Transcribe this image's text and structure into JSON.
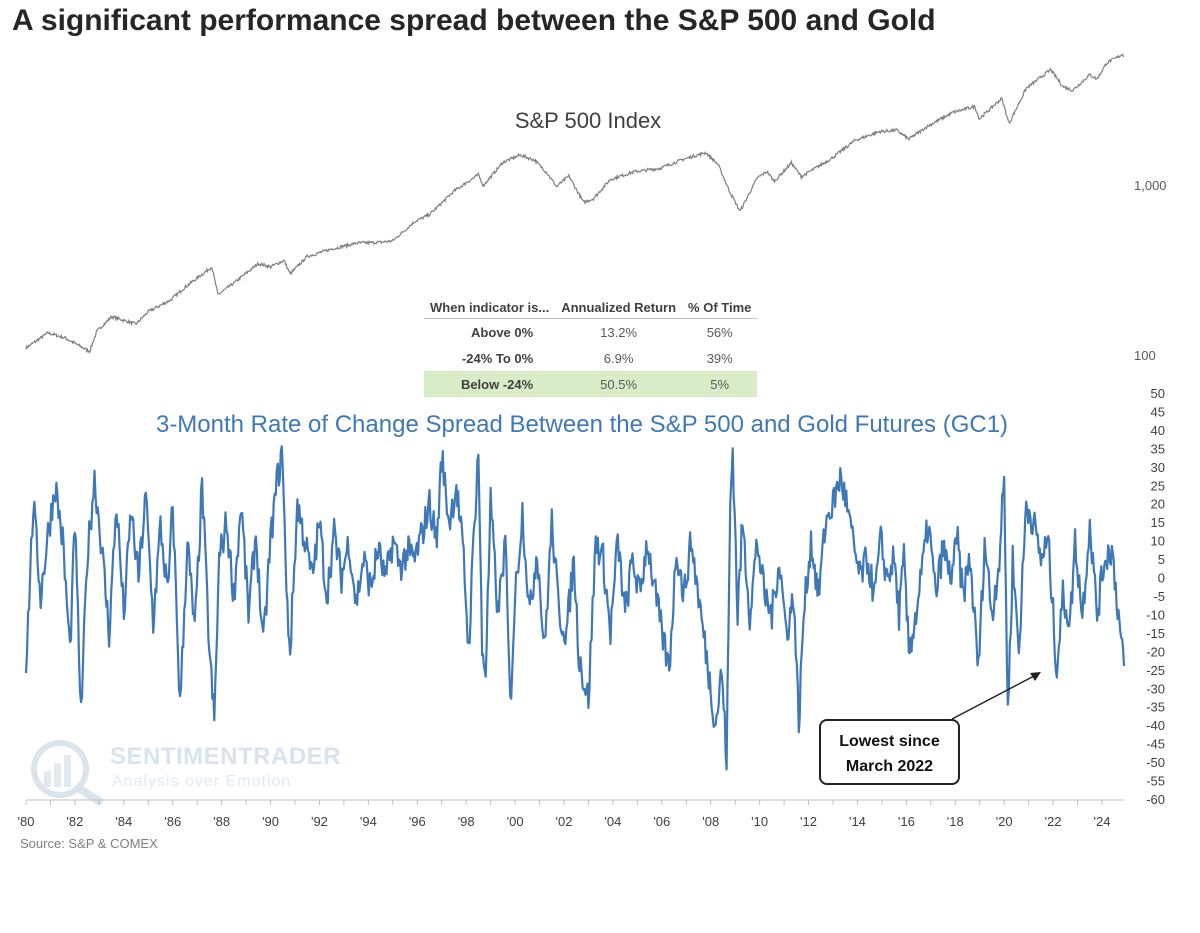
{
  "title": "A significant performance spread between the S&P 500 and Gold",
  "source": "Source: S&P & COMEX",
  "watermark": {
    "brand": "SENTIMENTRADER",
    "tagline": "Analysis over Emotion"
  },
  "annotation": {
    "line1": "Lowest since",
    "line2": "March 2022"
  },
  "stats_table": {
    "headers": [
      "When indicator is...",
      "Annualized Return",
      "% Of Time"
    ],
    "rows": [
      {
        "label": "Above 0%",
        "annualized_return": "13.2%",
        "pct_of_time": "56%"
      },
      {
        "label": "-24% To 0%",
        "annualized_return": "6.9%",
        "pct_of_time": "39%"
      },
      {
        "label": "Below -24%",
        "annualized_return": "50.5%",
        "pct_of_time": "5%"
      }
    ]
  },
  "colors": {
    "sp500_line": "#7f7f7f",
    "spread_line": "#3f78b6",
    "spread_title": "#3f78b6",
    "highlight_row": "#d9ecc8"
  },
  "chart_data": [
    {
      "type": "line",
      "title": "S&P 500 Index",
      "y_scale": "log",
      "y_ticks": [
        100,
        1000
      ],
      "y_tick_labels": [
        "100",
        "1,000"
      ],
      "ylim": [
        60,
        6500
      ],
      "xlim": [
        1980,
        2024.9
      ],
      "series": [
        {
          "points": [
            [
              1980.0,
              110
            ],
            [
              1980.9,
              135
            ],
            [
              1981.6,
              126
            ],
            [
              1982.6,
              105
            ],
            [
              1982.9,
              138
            ],
            [
              1983.5,
              168
            ],
            [
              1984.5,
              152
            ],
            [
              1985.0,
              180
            ],
            [
              1985.9,
              210
            ],
            [
              1986.5,
              250
            ],
            [
              1987.6,
              330
            ],
            [
              1987.85,
              226
            ],
            [
              1988.5,
              265
            ],
            [
              1989.5,
              345
            ],
            [
              1990.0,
              330
            ],
            [
              1990.55,
              360
            ],
            [
              1990.8,
              300
            ],
            [
              1991.5,
              380
            ],
            [
              1992.5,
              420
            ],
            [
              1993.5,
              455
            ],
            [
              1994.5,
              460
            ],
            [
              1995.0,
              470
            ],
            [
              1995.9,
              610
            ],
            [
              1996.5,
              670
            ],
            [
              1997.5,
              920
            ],
            [
              1998.5,
              1150
            ],
            [
              1998.7,
              990
            ],
            [
              1999.5,
              1360
            ],
            [
              2000.2,
              1500
            ],
            [
              2000.8,
              1400
            ],
            [
              2001.3,
              1180
            ],
            [
              2001.7,
              980
            ],
            [
              2002.2,
              1130
            ],
            [
              2002.8,
              790
            ],
            [
              2003.2,
              830
            ],
            [
              2003.9,
              1080
            ],
            [
              2004.9,
              1200
            ],
            [
              2005.9,
              1250
            ],
            [
              2006.9,
              1420
            ],
            [
              2007.8,
              1550
            ],
            [
              2008.3,
              1320
            ],
            [
              2008.8,
              900
            ],
            [
              2009.2,
              700
            ],
            [
              2009.9,
              1100
            ],
            [
              2010.3,
              1200
            ],
            [
              2010.6,
              1050
            ],
            [
              2011.3,
              1350
            ],
            [
              2011.7,
              1120
            ],
            [
              2012.9,
              1420
            ],
            [
              2013.9,
              1830
            ],
            [
              2014.9,
              2060
            ],
            [
              2015.6,
              2100
            ],
            [
              2016.1,
              1860
            ],
            [
              2016.9,
              2230
            ],
            [
              2017.9,
              2670
            ],
            [
              2018.8,
              2900
            ],
            [
              2018.98,
              2450
            ],
            [
              2019.9,
              3230
            ],
            [
              2020.2,
              2300
            ],
            [
              2020.9,
              3700
            ],
            [
              2021.9,
              4770
            ],
            [
              2022.4,
              3800
            ],
            [
              2022.8,
              3600
            ],
            [
              2023.5,
              4450
            ],
            [
              2023.8,
              4200
            ],
            [
              2024.2,
              5250
            ],
            [
              2024.6,
              5600
            ],
            [
              2024.85,
              5900
            ],
            [
              2024.9,
              5700
            ]
          ]
        }
      ]
    },
    {
      "type": "line",
      "title": "3-Month Rate of Change Spread Between the S&P 500 and Gold Futures (GC1)",
      "ylim": [
        -60,
        50
      ],
      "y_ticks": [
        50,
        45,
        40,
        35,
        30,
        25,
        20,
        15,
        10,
        5,
        0,
        -5,
        -10,
        -15,
        -20,
        -25,
        -30,
        -35,
        -40,
        -45,
        -50,
        -55,
        -60
      ],
      "x_tick_labels": [
        "'80",
        "'82",
        "'84",
        "'86",
        "'88",
        "'90",
        "'92",
        "'94",
        "'96",
        "'98",
        "'00",
        "'02",
        "'04",
        "'06",
        "'08",
        "'10",
        "'12",
        "'14",
        "'16",
        "'18",
        "'20",
        "'22",
        "'24"
      ],
      "x_tick_years": [
        1980,
        1982,
        1984,
        1986,
        1988,
        1990,
        1992,
        1994,
        1996,
        1998,
        2000,
        2002,
        2004,
        2006,
        2008,
        2010,
        2012,
        2014,
        2016,
        2018,
        2020,
        2022,
        2024
      ],
      "xlim": [
        1980,
        2024.9
      ],
      "series": [
        {
          "points": [
            [
              1980.0,
              -24
            ],
            [
              1980.3,
              20
            ],
            [
              1980.6,
              -5
            ],
            [
              1980.9,
              12
            ],
            [
              1981.2,
              25
            ],
            [
              1981.5,
              10
            ],
            [
              1981.8,
              -20
            ],
            [
              1982.0,
              15
            ],
            [
              1982.25,
              -38
            ],
            [
              1982.5,
              5
            ],
            [
              1982.8,
              27
            ],
            [
              1983.1,
              8
            ],
            [
              1983.4,
              -15
            ],
            [
              1983.7,
              20
            ],
            [
              1984.0,
              -10
            ],
            [
              1984.3,
              18
            ],
            [
              1984.6,
              0
            ],
            [
              1984.9,
              22
            ],
            [
              1985.2,
              -12
            ],
            [
              1985.5,
              14
            ],
            [
              1985.8,
              -5
            ],
            [
              1986.0,
              20
            ],
            [
              1986.3,
              -35
            ],
            [
              1986.6,
              10
            ],
            [
              1986.9,
              -15
            ],
            [
              1987.2,
              25
            ],
            [
              1987.5,
              -20
            ],
            [
              1987.7,
              -39
            ],
            [
              1987.9,
              5
            ],
            [
              1988.2,
              15
            ],
            [
              1988.5,
              -5
            ],
            [
              1988.8,
              20
            ],
            [
              1989.1,
              -10
            ],
            [
              1989.4,
              12
            ],
            [
              1989.7,
              -19
            ],
            [
              1990.0,
              10
            ],
            [
              1990.3,
              28
            ],
            [
              1990.5,
              33
            ],
            [
              1990.65,
              -5
            ],
            [
              1990.8,
              -20
            ],
            [
              1991.1,
              20
            ],
            [
              1991.4,
              10
            ],
            [
              1991.7,
              0
            ],
            [
              1992.0,
              15
            ],
            [
              1992.3,
              -5
            ],
            [
              1992.6,
              12
            ],
            [
              1992.9,
              0
            ],
            [
              1993.2,
              10
            ],
            [
              1993.5,
              -7
            ],
            [
              1993.8,
              5
            ],
            [
              1994.1,
              -3
            ],
            [
              1994.4,
              8
            ],
            [
              1994.7,
              -1
            ],
            [
              1995.0,
              10
            ],
            [
              1995.3,
              3
            ],
            [
              1995.6,
              7
            ],
            [
              1995.9,
              5
            ],
            [
              1996.2,
              12
            ],
            [
              1996.5,
              20
            ],
            [
              1996.8,
              10
            ],
            [
              1997.0,
              33
            ],
            [
              1997.3,
              15
            ],
            [
              1997.6,
              25
            ],
            [
              1997.9,
              5
            ],
            [
              1998.1,
              -20
            ],
            [
              1998.3,
              10
            ],
            [
              1998.5,
              35
            ],
            [
              1998.65,
              -20
            ],
            [
              1998.8,
              -25
            ],
            [
              1999.0,
              20
            ],
            [
              1999.3,
              -10
            ],
            [
              1999.6,
              10
            ],
            [
              1999.8,
              -35
            ],
            [
              2000.0,
              -5
            ],
            [
              2000.3,
              18
            ],
            [
              2000.6,
              -10
            ],
            [
              2000.9,
              8
            ],
            [
              2001.2,
              -20
            ],
            [
              2001.5,
              15
            ],
            [
              2001.8,
              -10
            ],
            [
              2002.1,
              -15
            ],
            [
              2002.4,
              5
            ],
            [
              2002.6,
              -20
            ],
            [
              2002.8,
              -28
            ],
            [
              2003.0,
              -33
            ],
            [
              2003.3,
              10
            ],
            [
              2003.6,
              5
            ],
            [
              2003.9,
              -15
            ],
            [
              2004.2,
              10
            ],
            [
              2004.5,
              -10
            ],
            [
              2004.8,
              5
            ],
            [
              2005.1,
              -5
            ],
            [
              2005.4,
              10
            ],
            [
              2005.7,
              -3
            ],
            [
              2006.0,
              -15
            ],
            [
              2006.3,
              -25
            ],
            [
              2006.6,
              8
            ],
            [
              2006.9,
              -5
            ],
            [
              2007.2,
              10
            ],
            [
              2007.5,
              -5
            ],
            [
              2007.8,
              -20
            ],
            [
              2008.0,
              -30
            ],
            [
              2008.2,
              -40
            ],
            [
              2008.45,
              -25
            ],
            [
              2008.65,
              -50
            ],
            [
              2008.8,
              20
            ],
            [
              2008.9,
              35
            ],
            [
              2009.1,
              -10
            ],
            [
              2009.3,
              15
            ],
            [
              2009.6,
              -10
            ],
            [
              2009.9,
              10
            ],
            [
              2010.2,
              -5
            ],
            [
              2010.5,
              -10
            ],
            [
              2010.8,
              5
            ],
            [
              2011.1,
              -15
            ],
            [
              2011.4,
              -5
            ],
            [
              2011.6,
              -40
            ],
            [
              2011.8,
              -10
            ],
            [
              2012.1,
              10
            ],
            [
              2012.4,
              -5
            ],
            [
              2012.7,
              15
            ],
            [
              2013.0,
              20
            ],
            [
              2013.3,
              27
            ],
            [
              2013.5,
              22
            ],
            [
              2013.8,
              10
            ],
            [
              2014.1,
              0
            ],
            [
              2014.4,
              5
            ],
            [
              2014.7,
              -5
            ],
            [
              2014.95,
              10
            ],
            [
              2015.2,
              0
            ],
            [
              2015.5,
              5
            ],
            [
              2015.7,
              -10
            ],
            [
              2015.9,
              5
            ],
            [
              2016.1,
              -20
            ],
            [
              2016.4,
              -10
            ],
            [
              2016.7,
              5
            ],
            [
              2016.9,
              15
            ],
            [
              2017.2,
              -5
            ],
            [
              2017.5,
              8
            ],
            [
              2017.8,
              0
            ],
            [
              2018.1,
              10
            ],
            [
              2018.3,
              -5
            ],
            [
              2018.6,
              5
            ],
            [
              2018.95,
              -25
            ],
            [
              2019.2,
              10
            ],
            [
              2019.5,
              -10
            ],
            [
              2019.8,
              5
            ],
            [
              2020.0,
              27
            ],
            [
              2020.15,
              -37
            ],
            [
              2020.35,
              5
            ],
            [
              2020.6,
              -20
            ],
            [
              2020.9,
              20
            ],
            [
              2021.2,
              15
            ],
            [
              2021.5,
              5
            ],
            [
              2021.8,
              10
            ],
            [
              2022.0,
              -10
            ],
            [
              2022.15,
              -25
            ],
            [
              2022.4,
              -5
            ],
            [
              2022.7,
              -12
            ],
            [
              2022.9,
              10
            ],
            [
              2023.2,
              -10
            ],
            [
              2023.5,
              15
            ],
            [
              2023.8,
              -10
            ],
            [
              2024.1,
              5
            ],
            [
              2024.4,
              8
            ],
            [
              2024.6,
              -5
            ],
            [
              2024.75,
              -15
            ],
            [
              2024.9,
              -24
            ]
          ]
        }
      ]
    }
  ]
}
